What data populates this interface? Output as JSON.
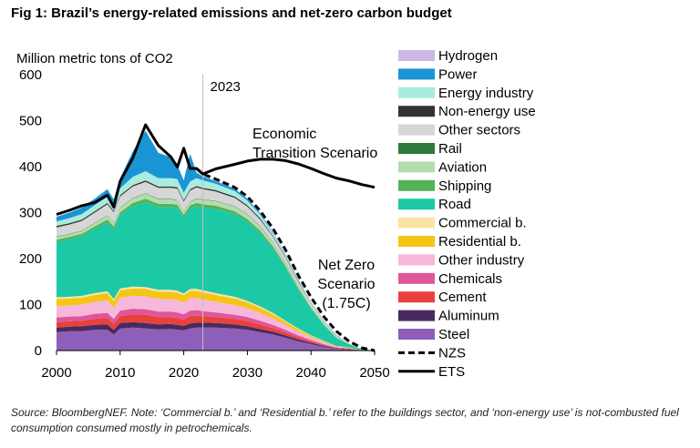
{
  "title": "Fig 1: Brazil’s energy-related emissions and net-zero carbon budget",
  "source": "Source: BloombergNEF. Note: ‘Commercial b.’ and ‘Residential b.’ refer to the buildings sector, and ‘non-energy use’ is not-combusted fuel consumption consumed mostly in petrochemicals.",
  "chart_data": {
    "type": "area",
    "title": "Fig 1: Brazil’s energy-related emissions and net-zero carbon budget",
    "ylabel": "Million metric tons of CO2",
    "xlabel": "",
    "ylim": [
      0,
      600
    ],
    "xlim": [
      2000,
      2050
    ],
    "yticks": [
      "0",
      "100",
      "200",
      "300",
      "400",
      "500",
      "600"
    ],
    "xticks": [
      "2000",
      "2010",
      "2020",
      "2030",
      "2040",
      "2050"
    ],
    "years": [
      2000,
      2002,
      2004,
      2006,
      2008,
      2009,
      2010,
      2012,
      2014,
      2016,
      2018,
      2019,
      2020,
      2021,
      2022,
      2023,
      2025,
      2028,
      2030,
      2032,
      2034,
      2036,
      2038,
      2040,
      2042,
      2044,
      2046,
      2048,
      2050
    ],
    "stack_order": "bottom-to-top",
    "series": [
      {
        "name": "Steel",
        "color": "#8e5fb8",
        "values": [
          40,
          42,
          42,
          45,
          45,
          35,
          48,
          50,
          48,
          46,
          47,
          45,
          44,
          48,
          50,
          50,
          50,
          48,
          45,
          40,
          35,
          28,
          20,
          14,
          8,
          4,
          2,
          1,
          0
        ]
      },
      {
        "name": "Aluminum",
        "color": "#4a2a5e",
        "values": [
          10,
          10,
          11,
          11,
          12,
          10,
          12,
          12,
          12,
          11,
          11,
          11,
          10,
          11,
          11,
          11,
          10,
          9,
          8,
          7,
          6,
          5,
          4,
          3,
          2,
          1,
          1,
          0,
          0
        ]
      },
      {
        "name": "Cement",
        "color": "#e8413c",
        "values": [
          12,
          12,
          12,
          13,
          14,
          13,
          15,
          17,
          18,
          16,
          15,
          15,
          14,
          16,
          15,
          14,
          13,
          12,
          11,
          10,
          8,
          6,
          5,
          3,
          2,
          1,
          1,
          0,
          0
        ]
      },
      {
        "name": "Chemicals",
        "color": "#e0569a",
        "values": [
          10,
          10,
          10,
          11,
          11,
          11,
          12,
          12,
          12,
          12,
          12,
          12,
          11,
          12,
          12,
          11,
          10,
          9,
          9,
          8,
          7,
          6,
          4,
          3,
          2,
          1,
          1,
          0,
          0
        ]
      },
      {
        "name": "Other industry",
        "color": "#f7b7db",
        "values": [
          25,
          24,
          25,
          26,
          27,
          24,
          28,
          28,
          28,
          27,
          27,
          27,
          25,
          27,
          26,
          25,
          23,
          21,
          19,
          17,
          14,
          11,
          8,
          6,
          4,
          2,
          1,
          0,
          0
        ]
      },
      {
        "name": "Residential b.",
        "color": "#f5c516",
        "values": [
          15,
          15,
          15,
          15,
          16,
          15,
          16,
          16,
          16,
          16,
          16,
          16,
          16,
          16,
          16,
          16,
          15,
          14,
          13,
          11,
          9,
          7,
          5,
          3,
          2,
          1,
          1,
          0,
          0
        ]
      },
      {
        "name": "Commercial b.",
        "color": "#fae4a5",
        "values": [
          4,
          4,
          4,
          4,
          4,
          4,
          4,
          4,
          4,
          4,
          4,
          4,
          4,
          4,
          4,
          4,
          4,
          4,
          3,
          3,
          3,
          2,
          2,
          1,
          1,
          0,
          0,
          0,
          0
        ]
      },
      {
        "name": "Road",
        "color": "#1cc9a6",
        "values": [
          120,
          125,
          130,
          140,
          150,
          152,
          160,
          175,
          185,
          180,
          180,
          180,
          165,
          175,
          180,
          180,
          183,
          180,
          172,
          160,
          140,
          115,
          85,
          58,
          35,
          17,
          7,
          2,
          0
        ]
      },
      {
        "name": "Shipping",
        "color": "#55b257",
        "values": [
          5,
          5,
          5,
          5,
          6,
          6,
          6,
          7,
          7,
          7,
          7,
          7,
          6,
          7,
          7,
          7,
          7,
          6,
          6,
          5,
          5,
          4,
          3,
          2,
          1,
          1,
          0,
          0,
          0
        ]
      },
      {
        "name": "Aviation",
        "color": "#b4dcb1",
        "values": [
          6,
          6,
          6,
          7,
          8,
          8,
          9,
          10,
          11,
          10,
          10,
          10,
          6,
          7,
          9,
          10,
          10,
          10,
          10,
          9,
          8,
          7,
          5,
          4,
          3,
          2,
          1,
          0,
          0
        ]
      },
      {
        "name": "Rail",
        "color": "#2e7a3a",
        "values": [
          1,
          1,
          1,
          1,
          1,
          1,
          1,
          1,
          1,
          1,
          1,
          1,
          1,
          1,
          1,
          1,
          1,
          1,
          1,
          1,
          1,
          1,
          1,
          0,
          0,
          0,
          0,
          0,
          0
        ]
      },
      {
        "name": "Other sectors",
        "color": "#d6d6d6",
        "values": [
          20,
          20,
          21,
          22,
          24,
          22,
          24,
          25,
          25,
          24,
          24,
          24,
          22,
          24,
          24,
          22,
          20,
          18,
          16,
          14,
          12,
          10,
          8,
          6,
          4,
          2,
          1,
          0,
          0
        ]
      },
      {
        "name": "Non-energy use",
        "color": "#333333",
        "values": [
          3,
          3,
          3,
          3,
          3,
          3,
          3,
          3,
          3,
          3,
          3,
          3,
          3,
          3,
          3,
          3,
          3,
          3,
          3,
          3,
          2,
          2,
          2,
          1,
          1,
          1,
          0,
          0,
          0
        ]
      },
      {
        "name": "Energy industry",
        "color": "#a8ece0",
        "values": [
          10,
          11,
          12,
          13,
          14,
          13,
          15,
          18,
          20,
          18,
          18,
          18,
          16,
          17,
          17,
          16,
          14,
          12,
          10,
          8,
          6,
          5,
          3,
          2,
          1,
          1,
          0,
          0,
          0
        ]
      },
      {
        "name": "Power",
        "color": "#1a95d4",
        "values": [
          10,
          12,
          14,
          14,
          16,
          12,
          22,
          55,
          88,
          55,
          45,
          30,
          27,
          60,
          12,
          9,
          6,
          5,
          4,
          3,
          2,
          1,
          1,
          0,
          0,
          0,
          0,
          0,
          0
        ]
      },
      {
        "name": "Hydrogen",
        "color": "#cdb8e8",
        "values": [
          0,
          0,
          0,
          0,
          0,
          0,
          0,
          0,
          0,
          0,
          0,
          0,
          0,
          0,
          0,
          0,
          0,
          0,
          0,
          0,
          0,
          0,
          0,
          0,
          0,
          0,
          0,
          0,
          0
        ]
      }
    ],
    "lines": [
      {
        "name": "NZS",
        "style": "dashed",
        "x": [
          2022,
          2023,
          2025,
          2028,
          2030,
          2032,
          2034,
          2036,
          2038,
          2040,
          2042,
          2044,
          2046,
          2048,
          2050
        ],
        "y": [
          396,
          384,
          373,
          355,
          335,
          304,
          266,
          219,
          164,
          116,
          74,
          42,
          20,
          6,
          0
        ]
      },
      {
        "name": "ETS",
        "style": "solid",
        "x": [
          2000,
          2002,
          2004,
          2006,
          2008,
          2009,
          2010,
          2012,
          2014,
          2016,
          2018,
          2019,
          2020,
          2021,
          2022,
          2023,
          2025,
          2028,
          2030,
          2032,
          2034,
          2036,
          2038,
          2040,
          2042,
          2044,
          2046,
          2048,
          2050
        ],
        "y": [
          296,
          305,
          315,
          322,
          338,
          312,
          368,
          419,
          491,
          446,
          421,
          399,
          440,
          396,
          396,
          384,
          395,
          405,
          412,
          416,
          416,
          413,
          406,
          396,
          385,
          375,
          369,
          361,
          355
        ]
      }
    ],
    "vline": {
      "x": 2023,
      "label": "2023"
    },
    "annotations": [
      {
        "id": "ets",
        "lines": [
          "Economic",
          "Transition Scenario"
        ]
      },
      {
        "id": "nzs",
        "lines": [
          "Net Zero",
          "Scenario",
          "(1.75C)"
        ]
      }
    ],
    "legend": {
      "placement": "right",
      "entries": [
        {
          "label": "Hydrogen",
          "kind": "area",
          "color": "#cdb8e8"
        },
        {
          "label": "Power",
          "kind": "area",
          "color": "#1a95d4"
        },
        {
          "label": "Energy industry",
          "kind": "area",
          "color": "#a8ece0"
        },
        {
          "label": "Non-energy use",
          "kind": "area",
          "color": "#333333"
        },
        {
          "label": "Other sectors",
          "kind": "area",
          "color": "#d6d6d6"
        },
        {
          "label": "Rail",
          "kind": "area",
          "color": "#2e7a3a"
        },
        {
          "label": "Aviation",
          "kind": "area",
          "color": "#b4dcb1"
        },
        {
          "label": "Shipping",
          "kind": "area",
          "color": "#55b257"
        },
        {
          "label": "Road",
          "kind": "area",
          "color": "#1cc9a6"
        },
        {
          "label": "Commercial b.",
          "kind": "area",
          "color": "#fae4a5"
        },
        {
          "label": "Residential b.",
          "kind": "area",
          "color": "#f5c516"
        },
        {
          "label": "Other industry",
          "kind": "area",
          "color": "#f7b7db"
        },
        {
          "label": "Chemicals",
          "kind": "area",
          "color": "#e0569a"
        },
        {
          "label": "Cement",
          "kind": "area",
          "color": "#e8413c"
        },
        {
          "label": "Aluminum",
          "kind": "area",
          "color": "#4a2a5e"
        },
        {
          "label": "Steel",
          "kind": "area",
          "color": "#8e5fb8"
        },
        {
          "label": "NZS",
          "kind": "dashed-line",
          "color": "#000000"
        },
        {
          "label": "ETS",
          "kind": "solid-line",
          "color": "#000000"
        }
      ]
    }
  }
}
